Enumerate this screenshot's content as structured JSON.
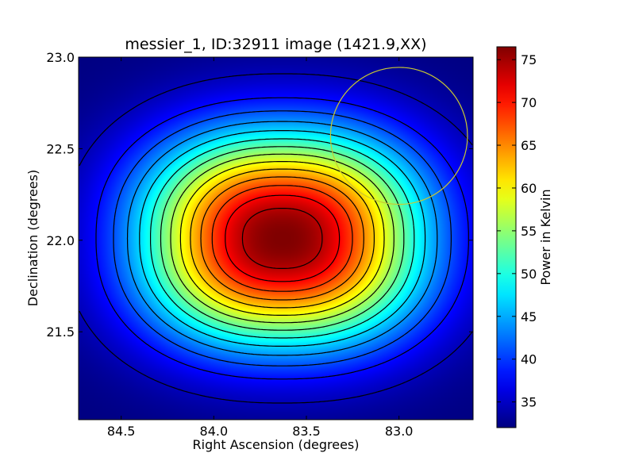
{
  "chart_data": {
    "type": "heatmap",
    "title": "messier_1, ID:32911 image (1421.9,XX)",
    "xlabel": "Right Ascension (degrees)",
    "ylabel": "Declination (degrees)",
    "xlim": [
      84.73,
      82.6
    ],
    "ylim": [
      21.02,
      23.0
    ],
    "x_ticks": [
      84.5,
      84.0,
      83.5,
      83.0
    ],
    "x_tick_labels": [
      "84.5",
      "84.0",
      "83.5",
      "83.0"
    ],
    "y_ticks": [
      21.5,
      22.0,
      22.5,
      23.0
    ],
    "y_tick_labels": [
      "21.5",
      "22.0",
      "22.5",
      "23.0"
    ],
    "colormap": "jet",
    "colorbar": {
      "label": "Power in Kelvin",
      "range": [
        32,
        76.5
      ],
      "ticks": [
        35,
        40,
        45,
        50,
        55,
        60,
        65,
        70,
        75
      ],
      "tick_labels": [
        "35",
        "40",
        "45",
        "50",
        "55",
        "60",
        "65",
        "70",
        "75"
      ]
    },
    "peak": {
      "ra": 83.63,
      "dec": 22.01,
      "value": 76.5
    },
    "background_value": 32,
    "contour_levels": [
      34.5,
      38,
      41,
      44,
      47,
      50,
      53,
      56,
      59,
      62,
      65,
      68,
      71,
      74
    ],
    "contour_color": "#000000",
    "marker_circle": {
      "ra": 83.0,
      "dec": 22.57,
      "radius_deg": 0.37,
      "color": "#c8c832"
    }
  }
}
